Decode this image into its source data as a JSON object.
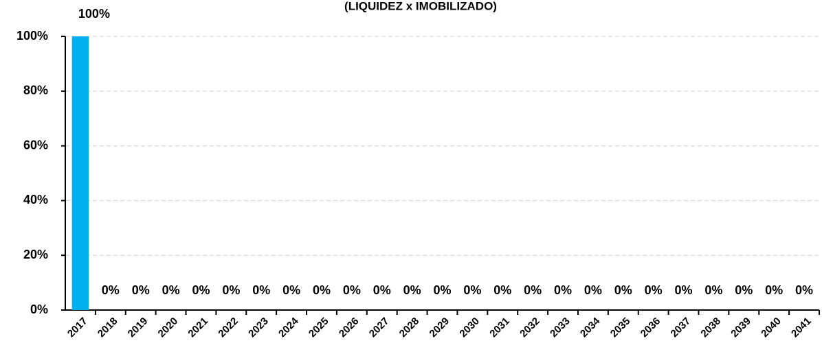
{
  "chart_data": {
    "type": "bar",
    "title": "(LIQUIDEZ x IMOBILIZADO)",
    "categories": [
      "2017",
      "2018",
      "2019",
      "2020",
      "2021",
      "2022",
      "2023",
      "2024",
      "2025",
      "2026",
      "2027",
      "2028",
      "2029",
      "2030",
      "2031",
      "2032",
      "2033",
      "2034",
      "2035",
      "2036",
      "2037",
      "2038",
      "2039",
      "2040",
      "2041"
    ],
    "values": [
      100,
      0,
      0,
      0,
      0,
      0,
      0,
      0,
      0,
      0,
      0,
      0,
      0,
      0,
      0,
      0,
      0,
      0,
      0,
      0,
      0,
      0,
      0,
      0,
      0
    ],
    "value_labels": [
      "100%",
      "0%",
      "0%",
      "0%",
      "0%",
      "0%",
      "0%",
      "0%",
      "0%",
      "0%",
      "0%",
      "0%",
      "0%",
      "0%",
      "0%",
      "0%",
      "0%",
      "0%",
      "0%",
      "0%",
      "0%",
      "0%",
      "0%",
      "0%",
      "0%"
    ],
    "color": "#00b0f0",
    "ylim": [
      0,
      100
    ],
    "yticks": [
      {
        "value": 0,
        "label": "0%"
      },
      {
        "value": 20,
        "label": "20%"
      },
      {
        "value": 40,
        "label": "40%"
      },
      {
        "value": 60,
        "label": "60%"
      },
      {
        "value": 80,
        "label": "80%"
      },
      {
        "value": 100,
        "label": "100%"
      }
    ],
    "grid": true
  }
}
